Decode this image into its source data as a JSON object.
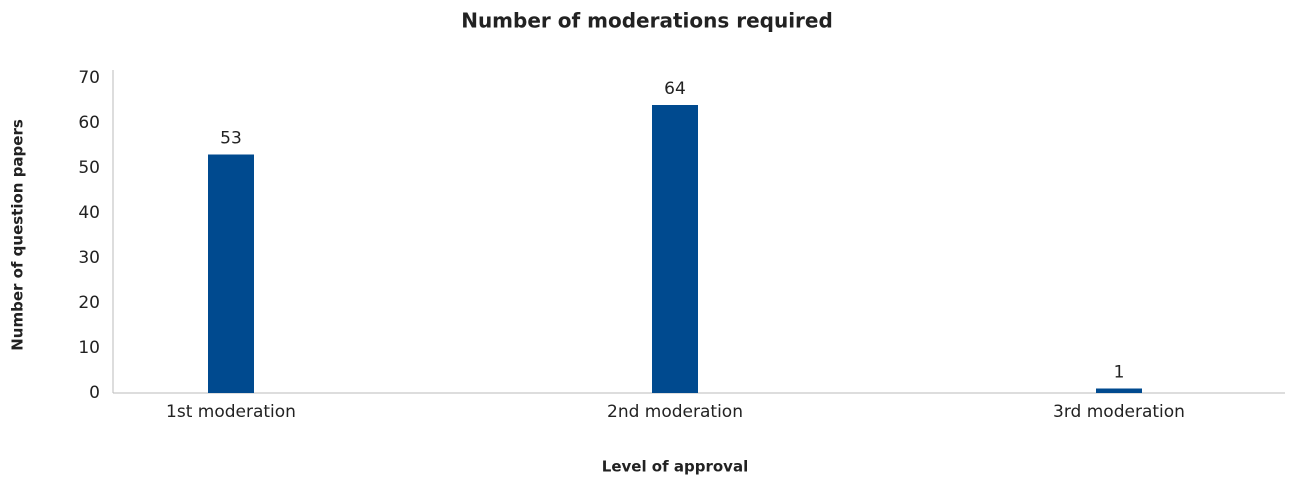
{
  "chart_data": {
    "type": "bar",
    "title": "Number of moderations required",
    "x_label": "Level of approval",
    "y_label": "Number of question papers",
    "categories": [
      "1st moderation",
      "2nd moderation",
      "3rd moderation"
    ],
    "values": [
      53,
      64,
      1
    ],
    "color": "#004a8f",
    "ylim": [
      0,
      70
    ],
    "yticks": [
      0,
      10,
      20,
      30,
      40,
      50,
      60,
      70
    ],
    "grid": false
  }
}
